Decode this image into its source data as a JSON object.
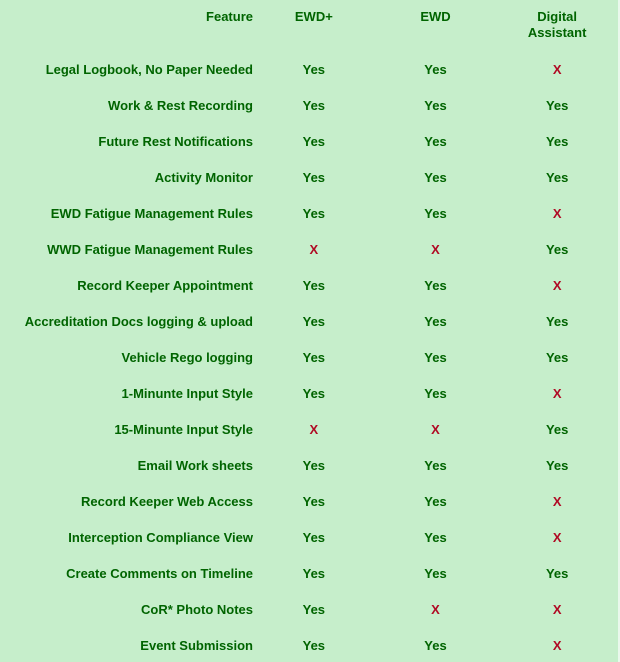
{
  "chart_data": {
    "type": "table",
    "columns": [
      "Feature",
      "EWD+",
      "EWD",
      "Digital Assistant"
    ],
    "rows": [
      {
        "feature": "Legal Logbook, No Paper Needed",
        "values": [
          "Yes",
          "Yes",
          "X"
        ]
      },
      {
        "feature": "Work & Rest Recording",
        "values": [
          "Yes",
          "Yes",
          "Yes"
        ]
      },
      {
        "feature": "Future Rest Notifications",
        "values": [
          "Yes",
          "Yes",
          "Yes"
        ]
      },
      {
        "feature": "Activity Monitor",
        "values": [
          "Yes",
          "Yes",
          "Yes"
        ]
      },
      {
        "feature": "EWD Fatigue Management Rules",
        "values": [
          "Yes",
          "Yes",
          "X"
        ]
      },
      {
        "feature": "WWD Fatigue Management Rules",
        "values": [
          "X",
          "X",
          "Yes"
        ]
      },
      {
        "feature": "Record Keeper Appointment",
        "values": [
          "Yes",
          "Yes",
          "X"
        ]
      },
      {
        "feature": "Accreditation Docs logging & upload",
        "values": [
          "Yes",
          "Yes",
          "Yes"
        ]
      },
      {
        "feature": "Vehicle Rego logging",
        "values": [
          "Yes",
          "Yes",
          "Yes"
        ]
      },
      {
        "feature": "1-Minunte Input Style",
        "values": [
          "Yes",
          "Yes",
          "X"
        ]
      },
      {
        "feature": "15-Minunte Input Style",
        "values": [
          "X",
          "X",
          "Yes"
        ]
      },
      {
        "feature": "Email Work sheets",
        "values": [
          "Yes",
          "Yes",
          "Yes"
        ]
      },
      {
        "feature": "Record Keeper Web Access",
        "values": [
          "Yes",
          "Yes",
          "X"
        ]
      },
      {
        "feature": "Interception Compliance View",
        "values": [
          "Yes",
          "Yes",
          "X"
        ]
      },
      {
        "feature": "Create Comments on Timeline",
        "values": [
          "Yes",
          "Yes",
          "Yes"
        ]
      },
      {
        "feature": "CoR* Photo Notes",
        "values": [
          "Yes",
          "X",
          "X"
        ]
      },
      {
        "feature": "Event Submission",
        "values": [
          "Yes",
          "Yes",
          "X"
        ]
      }
    ]
  },
  "colors": {
    "background": "#c6eecb",
    "text_green": "#006400",
    "x_red": "#b00a24"
  }
}
